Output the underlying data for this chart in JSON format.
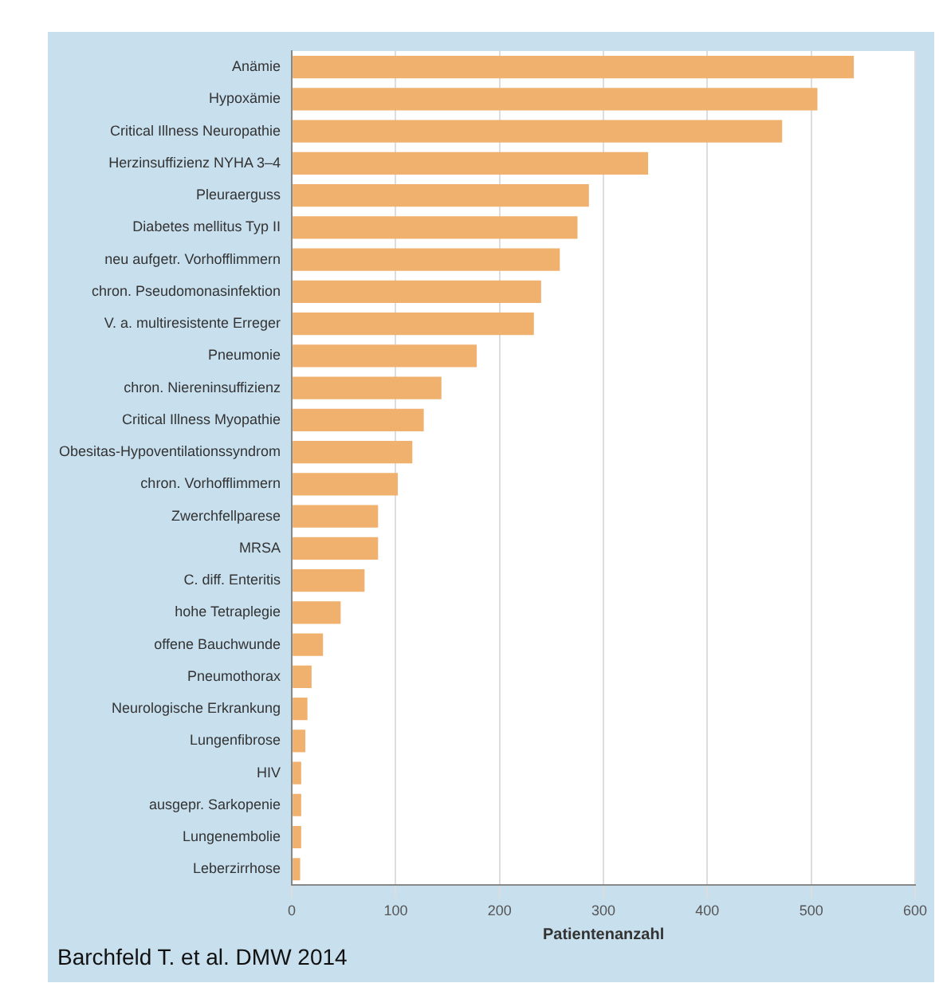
{
  "chart_data": {
    "type": "bar",
    "orientation": "horizontal",
    "xlabel": "Patientenanzahl",
    "categories": [
      "Anämie",
      "Hypoxämie",
      "Critical Illness Neuropathie",
      "Herzinsuffizienz NYHA 3–4",
      "Pleuraerguss",
      "Diabetes mellitus Typ II",
      "neu aufgetr. Vorhofflimmern",
      "chron. Pseudomonasinfektion",
      "V. a. multiresistente Erreger",
      "Pneumonie",
      "chron. Niereninsuffizienz",
      "Critical Illness Myopathie",
      "Obesitas-Hypoventilationssyndrom",
      "chron. Vorhofflimmern",
      "Zwerchfellparese",
      "MRSA",
      "C. diff. Enteritis",
      "hohe Tetraplegie",
      "offene Bauchwunde",
      "Pneumothorax",
      "Neurologische Erkrankung",
      "Lungenfibrose",
      "HIV",
      "ausgepr. Sarkopenie",
      "Lungenembolie",
      "Leberzirrhose"
    ],
    "values": [
      541,
      506,
      472,
      343,
      286,
      275,
      258,
      240,
      233,
      178,
      144,
      127,
      116,
      102,
      83,
      83,
      70,
      47,
      30,
      19,
      15,
      13,
      9,
      9,
      9,
      8
    ],
    "color": "#f0b16e",
    "xlim": [
      0,
      600
    ],
    "xticks": [
      0,
      100,
      200,
      300,
      400,
      500,
      600
    ],
    "grid": "x",
    "legend": false,
    "annotations": [
      "Barchfeld T. et al. DMW 2014"
    ]
  }
}
